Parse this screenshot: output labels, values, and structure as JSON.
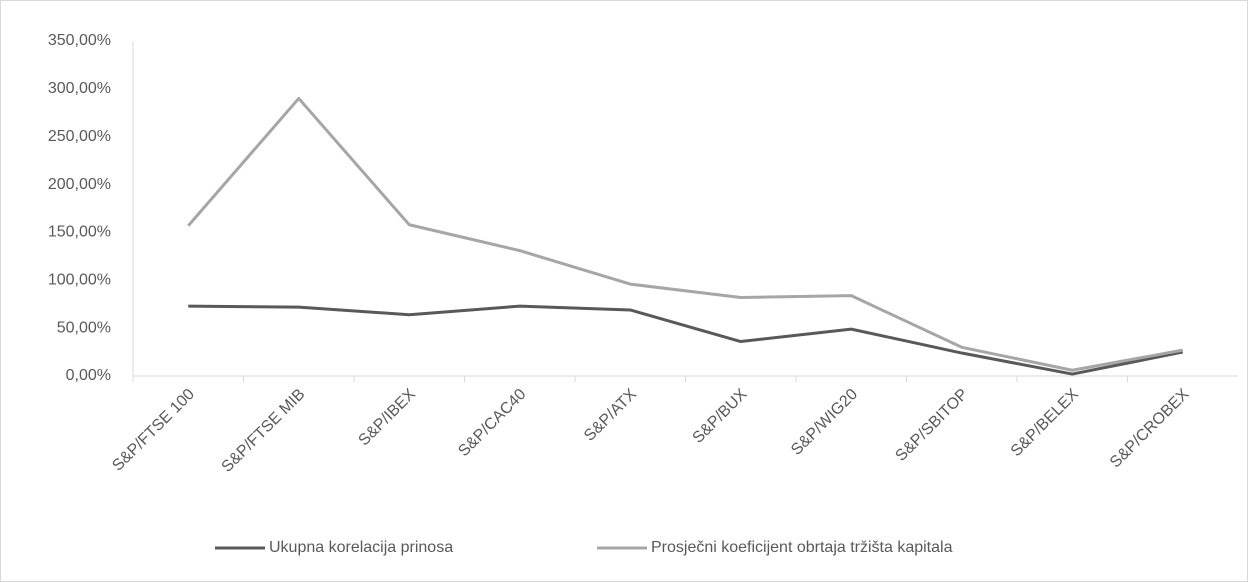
{
  "chart_data": {
    "type": "line",
    "categories": [
      "S&P/FTSE 100",
      "S&P/FTSE MIB",
      "S&P/IBEX",
      "S&P/CAC40",
      "S&P/ATX",
      "S&P/BUX",
      "S&P/WIG20",
      "S&P/SBITOP",
      "S&P/BELEX",
      "S&P/CROBEX"
    ],
    "series": [
      {
        "name": "Ukupna korelacija prinosa",
        "color": "#595959",
        "values": [
          73,
          72,
          64,
          73,
          69,
          36,
          49,
          24,
          2,
          25
        ]
      },
      {
        "name": "Prosječni koeficijent obrtaja tržišta kapitala",
        "color": "#a6a6a6",
        "values": [
          157,
          290,
          158,
          131,
          96,
          82,
          84,
          30,
          6,
          27
        ]
      }
    ],
    "ylim": [
      0,
      350
    ],
    "yticks": [
      {
        "value": 0,
        "label": "0,00%"
      },
      {
        "value": 50,
        "label": "50,00%"
      },
      {
        "value": 100,
        "label": "100,00%"
      },
      {
        "value": 150,
        "label": "150,00%"
      },
      {
        "value": 200,
        "label": "200,00%"
      },
      {
        "value": 250,
        "label": "250,00%"
      },
      {
        "value": 300,
        "label": "300,00%"
      },
      {
        "value": 350,
        "label": "350,00%"
      }
    ],
    "grid": false,
    "legend": "bottom"
  }
}
